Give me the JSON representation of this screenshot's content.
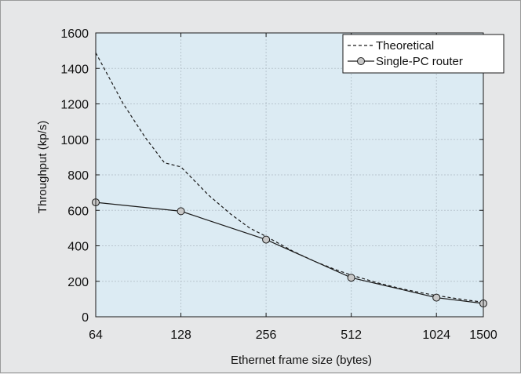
{
  "chart_data": {
    "type": "line",
    "title": "",
    "xlabel": "Ethernet frame size (bytes)",
    "ylabel": "Throughput (kp/s)",
    "x_scale": "log2",
    "x_ticks": [
      64,
      128,
      256,
      512,
      1024,
      1500
    ],
    "xlim": [
      64,
      1500
    ],
    "ylim": [
      0,
      1600
    ],
    "y_ticks": [
      0,
      200,
      400,
      600,
      800,
      1000,
      1200,
      1400,
      1600
    ],
    "grid": true,
    "legend_position": "top-right",
    "series": [
      {
        "name": "Theoretical",
        "style": "dashed",
        "markers": false,
        "x": [
          64,
          80,
          96,
          112,
          128,
          160,
          192,
          224,
          256,
          320,
          384,
          448,
          512,
          640,
          768,
          896,
          1024,
          1280,
          1500
        ],
        "y": [
          1488.1,
          1201.9,
          1008.1,
          868.1,
          844.6,
          686.8,
          578.7,
          500.0,
          452.9,
          367.6,
          309.4,
          267.4,
          234.9,
          189.4,
          158.7,
          136.6,
          119.7,
          96.2,
          82.2
        ]
      },
      {
        "name": "Single-PC router",
        "style": "solid",
        "markers": true,
        "x": [
          64,
          128,
          256,
          512,
          1024,
          1500
        ],
        "y": [
          645,
          595,
          435,
          220,
          108,
          75
        ]
      }
    ]
  },
  "colors": {
    "figure_background": "#e6e7e8",
    "plot_background": "#dcebf3",
    "grid": "#b9c6cf",
    "line": "#1a1a1a",
    "marker_fill": "#c8c8c8",
    "legend_background": "#ffffff"
  }
}
